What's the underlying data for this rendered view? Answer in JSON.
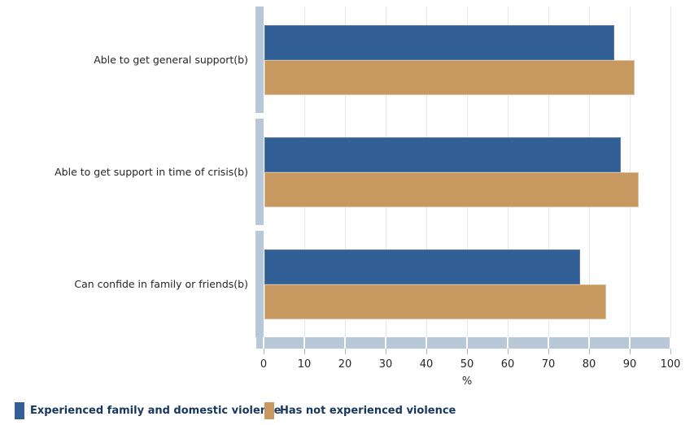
{
  "chart_data": {
    "type": "bar",
    "orientation": "horizontal",
    "title": "",
    "categories": [
      "Able to get general support(b)",
      "Able to get support in time of crisis(b)",
      "Can confide in family or friends(b)"
    ],
    "series": [
      {
        "name": "Experienced family and domestic violence",
        "color": "#315F96",
        "values": [
          86,
          87.5,
          77.5
        ]
      },
      {
        "name": "Has not experienced violence",
        "color": "#C7985F",
        "values": [
          91,
          92,
          84
        ]
      }
    ],
    "xlabel": "%",
    "xlim": [
      0,
      100
    ],
    "xticks": [
      0,
      10,
      20,
      30,
      40,
      50,
      60,
      70,
      80,
      90,
      100
    ],
    "grid": true,
    "legend_position": "bottom"
  },
  "colors": {
    "axis_band": "#B9C8D9",
    "gridline": "#E6E6E6",
    "tick_mark": "#A9BBCE",
    "label_text": "#262626",
    "legend_text": "#17375D",
    "background": "#FFFFFF"
  }
}
